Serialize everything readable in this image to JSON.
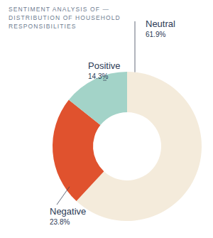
{
  "chart_data": {
    "type": "pie",
    "title": "SENTIMENT ANALYSIS OF — DISTRIBUTION OF HOUSEHOLD RESPONSIBILITIES",
    "categories": [
      "Neutral",
      "Negative",
      "Positive"
    ],
    "values": [
      61.9,
      23.8,
      14.3
    ],
    "value_labels": [
      "61.9%",
      "23.8%",
      "14.3%"
    ],
    "colors": [
      "#f4ebdb",
      "#e0522e",
      "#a3d3c8"
    ],
    "data_labels": true
  }
}
